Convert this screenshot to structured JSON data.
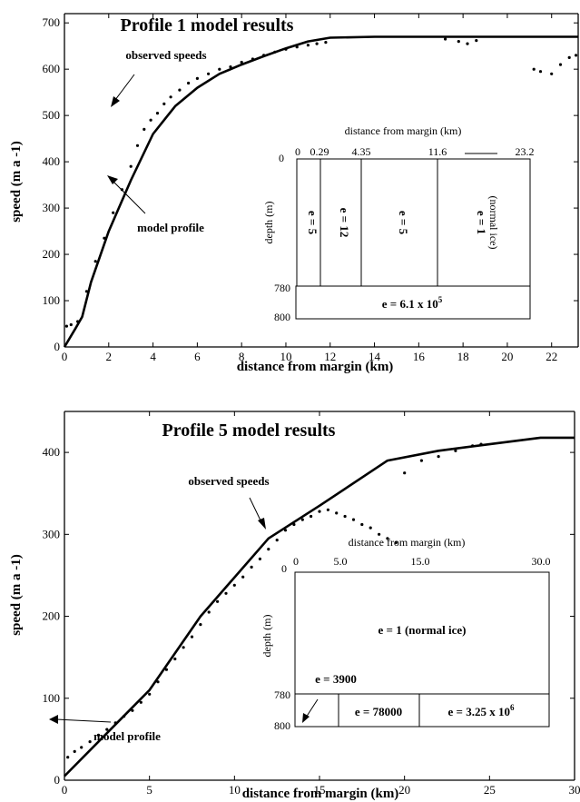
{
  "chart_data": [
    {
      "type": "line",
      "title": "Profile 1 model results",
      "xlabel": "distance from margin (km)",
      "ylabel": "speed (m a -1)",
      "xlim": [
        0,
        23.2
      ],
      "ylim": [
        0,
        720
      ],
      "xticks": [
        "0",
        "2",
        "4",
        "6",
        "8",
        "10",
        "12",
        "14",
        "16",
        "18",
        "20",
        "22"
      ],
      "yticks": [
        "0",
        "100",
        "200",
        "300",
        "400",
        "500",
        "600",
        "700"
      ],
      "grid": false,
      "series": [
        {
          "role": "model",
          "x": [
            0,
            0.5,
            0.8,
            1.2,
            2,
            3,
            4,
            5,
            6,
            7,
            8,
            9,
            10,
            11,
            12,
            14,
            18,
            23.2
          ],
          "y": [
            0,
            40,
            65,
            140,
            250,
            360,
            460,
            520,
            560,
            590,
            610,
            628,
            645,
            660,
            668,
            670,
            670,
            670
          ]
        },
        {
          "role": "observed",
          "x": [
            0.1,
            0.3,
            0.6,
            1.0,
            1.4,
            1.8,
            2.2,
            2.6,
            3.0,
            3.3,
            3.6,
            3.9,
            4.2,
            4.5,
            4.8,
            5.2,
            5.6,
            6.0,
            6.5,
            7.0,
            7.5,
            8.0,
            8.5,
            9.0,
            9.5,
            10.0,
            10.5,
            11.0,
            11.4,
            11.8,
            17.2,
            17.8,
            18.2,
            18.6,
            21.2,
            21.5,
            22.0,
            22.4,
            22.8,
            23.1
          ],
          "y": [
            45,
            48,
            55,
            120,
            185,
            235,
            290,
            340,
            390,
            435,
            470,
            490,
            505,
            525,
            540,
            555,
            570,
            580,
            590,
            600,
            605,
            615,
            622,
            630,
            637,
            643,
            648,
            652,
            655,
            658,
            665,
            660,
            655,
            662,
            600,
            595,
            590,
            610,
            625,
            630
          ]
        }
      ],
      "annotations": [
        "observed speeds",
        "model profile"
      ],
      "inset": {
        "title": "distance from margin (km)",
        "ylabel": "depth (m)",
        "xticks": [
          "0",
          "0.29",
          "4.35",
          "11.6",
          "23.2"
        ],
        "yticks": [
          "0",
          "780",
          "800"
        ],
        "cells": [
          "e = 5",
          "e = 12",
          "e = 5",
          "e = 1",
          "(normal ice)"
        ],
        "bottom_label": "e = 6.1 x 10",
        "bottom_exp": "5"
      }
    },
    {
      "type": "line",
      "title": "Profile 5 model results",
      "xlabel": "distance from margin (km)",
      "ylabel": "speed (m a -1)",
      "xlim": [
        0,
        30
      ],
      "ylim": [
        0,
        450
      ],
      "xticks": [
        "0",
        "5",
        "10",
        "15",
        "20",
        "25",
        "30"
      ],
      "yticks": [
        "0",
        "100",
        "200",
        "300",
        "400"
      ],
      "grid": false,
      "series": [
        {
          "role": "model",
          "x": [
            0,
            5,
            8,
            12,
            15,
            19,
            22,
            25,
            28,
            30
          ],
          "y": [
            5,
            110,
            200,
            295,
            335,
            390,
            402,
            410,
            418,
            418
          ]
        },
        {
          "role": "observed",
          "x": [
            0.2,
            0.6,
            1.0,
            1.5,
            2.0,
            2.5,
            3.0,
            3.5,
            4.0,
            4.5,
            5.0,
            5.5,
            6.0,
            6.5,
            7.0,
            7.5,
            8.0,
            8.5,
            9.0,
            9.5,
            10.0,
            10.5,
            11.0,
            11.5,
            12.0,
            12.5,
            13.0,
            13.5,
            14.0,
            14.5,
            15.0,
            15.5,
            16.0,
            16.5,
            17.0,
            17.5,
            18.0,
            18.5,
            19.0,
            19.5,
            20.0,
            21.0,
            22.0,
            23.0,
            24.0,
            24.5
          ],
          "y": [
            28,
            35,
            40,
            47,
            55,
            62,
            70,
            78,
            85,
            95,
            105,
            120,
            135,
            148,
            162,
            175,
            190,
            205,
            218,
            228,
            238,
            248,
            260,
            270,
            282,
            293,
            305,
            312,
            318,
            322,
            328,
            330,
            326,
            322,
            318,
            312,
            308,
            300,
            295,
            290,
            375,
            390,
            395,
            402,
            408,
            410
          ]
        }
      ],
      "annotations": [
        "observed speeds",
        "model profile"
      ],
      "inset": {
        "title": "distance from margin (km)",
        "ylabel": "depth (m)",
        "xticks": [
          "0",
          "5.0",
          "15.0",
          "30.0"
        ],
        "yticks": [
          "0",
          "780",
          "800"
        ],
        "cells": [
          "e = 1 (normal ice)",
          "e = 3900",
          "e = 78000",
          "e = 3.25 x 10"
        ],
        "last_exp": "6"
      }
    }
  ]
}
